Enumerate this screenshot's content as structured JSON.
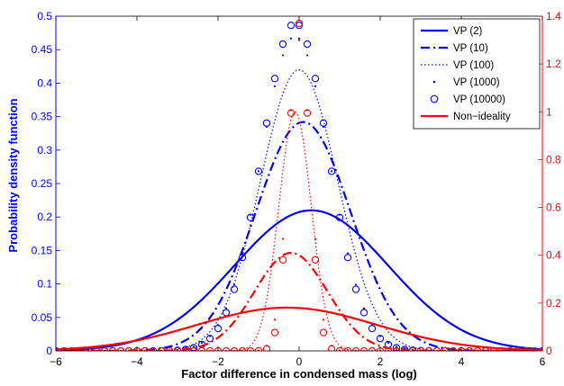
{
  "chart_data": {
    "type": "line",
    "title": "",
    "xlabel": "Factor difference in condensed mass (log)",
    "ylabel_left": "Probability density function",
    "ylabel_right": "",
    "xlim": [
      -6,
      6
    ],
    "ylim_left": [
      0,
      0.5
    ],
    "ylim_right": [
      0,
      1.4
    ],
    "x_ticks": [
      "-6",
      "-4",
      "-2",
      "0",
      "2",
      "4",
      "6"
    ],
    "y_ticks_left": [
      "0",
      "0.05",
      "0.1",
      "0.15",
      "0.2",
      "0.25",
      "0.3",
      "0.35",
      "0.4",
      "0.45",
      "0.5"
    ],
    "y_ticks_right": [
      "0",
      "0.2",
      "0.4",
      "0.6",
      "0.8",
      "1",
      "1.2",
      "1.4"
    ],
    "legend_position": "top-right",
    "grid": false,
    "colors": {
      "vp": "#0000ff",
      "non_ideality": "#ff0000"
    },
    "series": [
      {
        "name": "VP (2)",
        "axis": "left",
        "group": "vp",
        "style": "solid",
        "mean": 0.3,
        "sd": 1.9,
        "peak": 0.21
      },
      {
        "name": "VP (10)",
        "axis": "left",
        "group": "vp",
        "style": "dashdot",
        "mean": 0.1,
        "sd": 1.17,
        "peak": 0.342
      },
      {
        "name": "VP (100)",
        "axis": "left",
        "group": "vp",
        "style": "dotted",
        "mean": 0.0,
        "sd": 0.95,
        "peak": 0.42
      },
      {
        "name": "VP (1000)",
        "axis": "left",
        "group": "vp",
        "style": "point",
        "mean": -0.1,
        "sd": 0.85,
        "peak": 0.47
      },
      {
        "name": "VP (10000)",
        "axis": "left",
        "group": "vp",
        "style": "circle",
        "mean": -0.1,
        "sd": 0.82,
        "peak": 0.49
      },
      {
        "name": "Non-ideality",
        "axis": "right",
        "group": "non_ideality",
        "style": "solid",
        "mean": -0.3,
        "sd": 2.2,
        "peak": 0.181
      },
      {
        "name": "",
        "axis": "right",
        "group": "non_ideality",
        "style": "dashdot",
        "mean": -0.2,
        "sd": 0.9,
        "peak": 0.41
      },
      {
        "name": "",
        "axis": "right",
        "group": "non_ideality",
        "style": "dotted",
        "mean": -0.1,
        "sd": 0.4,
        "peak": 1.0
      },
      {
        "name": "",
        "axis": "right",
        "group": "non_ideality",
        "style": "point",
        "mean": 0.0,
        "sd": 0.28,
        "peak": 1.3
      },
      {
        "name": "",
        "axis": "right",
        "group": "non_ideality",
        "style": "circle",
        "mean": 0.0,
        "sd": 0.25,
        "peak": 1.37
      }
    ]
  }
}
